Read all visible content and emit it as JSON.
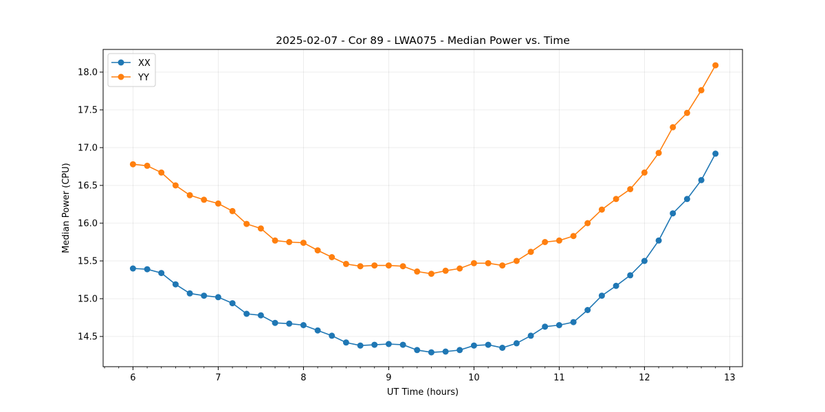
{
  "chart_data": {
    "type": "line",
    "title": "2025-02-07 - Cor 89 - LWA075 - Median Power vs. Time",
    "xlabel": "UT Time (hours)",
    "ylabel": "Median Power (CPU)",
    "xlim": [
      5.65,
      13.15
    ],
    "ylim": [
      14.1,
      18.3
    ],
    "xticks": [
      6,
      7,
      8,
      9,
      10,
      11,
      12,
      13
    ],
    "xtick_labels": [
      "6",
      "7",
      "8",
      "9",
      "10",
      "11",
      "12",
      "13"
    ],
    "yticks": [
      14.5,
      15.0,
      15.5,
      16.0,
      16.5,
      17.0,
      17.5,
      18.0
    ],
    "ytick_labels": [
      "14.5",
      "15.0",
      "15.5",
      "16.0",
      "16.5",
      "17.0",
      "17.5",
      "18.0"
    ],
    "grid": true,
    "legend_position": "top-left",
    "x": [
      6.0,
      6.167,
      6.333,
      6.5,
      6.667,
      6.833,
      7.0,
      7.167,
      7.333,
      7.5,
      7.667,
      7.833,
      8.0,
      8.167,
      8.333,
      8.5,
      8.667,
      8.833,
      9.0,
      9.167,
      9.333,
      9.5,
      9.667,
      9.833,
      10.0,
      10.167,
      10.333,
      10.5,
      10.667,
      10.833,
      11.0,
      11.167,
      11.333,
      11.5,
      11.667,
      11.833,
      12.0,
      12.167,
      12.333,
      12.5,
      12.667,
      12.833
    ],
    "series": [
      {
        "name": "XX",
        "color": "#1f77b4",
        "values": [
          15.4,
          15.39,
          15.34,
          15.19,
          15.07,
          15.04,
          15.02,
          14.94,
          14.8,
          14.78,
          14.68,
          14.67,
          14.65,
          14.58,
          14.51,
          14.42,
          14.38,
          14.39,
          14.4,
          14.39,
          14.32,
          14.29,
          14.3,
          14.32,
          14.38,
          14.39,
          14.35,
          14.41,
          14.51,
          14.63,
          14.65,
          14.69,
          14.85,
          15.04,
          15.17,
          15.31,
          15.5,
          15.77,
          16.13,
          16.32,
          16.57,
          16.92
        ]
      },
      {
        "name": "YY",
        "color": "#ff7f0e",
        "values": [
          16.78,
          16.76,
          16.67,
          16.5,
          16.37,
          16.31,
          16.26,
          16.16,
          15.99,
          15.93,
          15.77,
          15.75,
          15.74,
          15.64,
          15.55,
          15.46,
          15.43,
          15.44,
          15.44,
          15.43,
          15.36,
          15.33,
          15.37,
          15.4,
          15.47,
          15.47,
          15.44,
          15.5,
          15.62,
          15.75,
          15.77,
          15.83,
          16.0,
          16.18,
          16.32,
          16.45,
          16.67,
          16.93,
          17.27,
          17.46,
          17.76,
          18.09
        ]
      }
    ]
  }
}
